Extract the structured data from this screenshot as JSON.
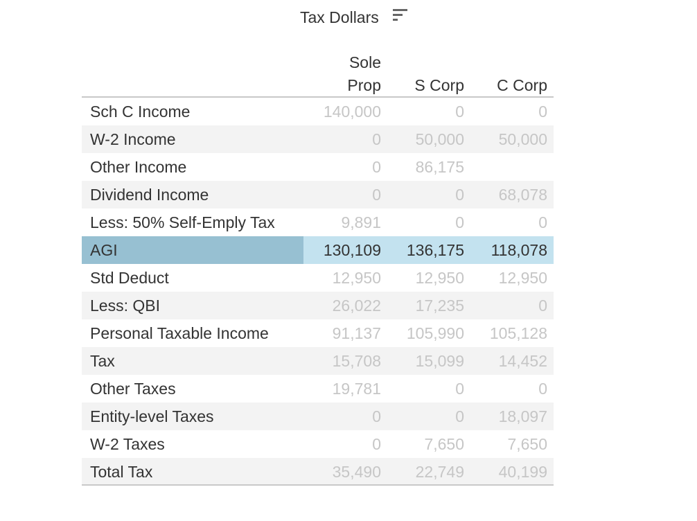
{
  "title": "Tax Dollars",
  "sort_icon": "sort-descending-icon",
  "columns": {
    "c1_line1": "Sole",
    "c1_line2": "Prop",
    "c2": "S Corp",
    "c3": "C Corp"
  },
  "colors": {
    "highlight_label": "#97c0d2",
    "highlight_values": "#c3e2ef",
    "muted_text": "#c6c6c6",
    "text": "#333333"
  },
  "rows": [
    {
      "label": "Sch C Income",
      "values": [
        "140,000",
        "0",
        "0"
      ]
    },
    {
      "label": "W-2 Income",
      "values": [
        "0",
        "50,000",
        "50,000"
      ]
    },
    {
      "label": "Other Income",
      "values": [
        "0",
        "86,175",
        ""
      ]
    },
    {
      "label": "Dividend Income",
      "values": [
        "0",
        "0",
        "68,078"
      ]
    },
    {
      "label": "Less: 50% Self-Emply Tax",
      "values": [
        "9,891",
        "0",
        "0"
      ]
    },
    {
      "label": "AGI",
      "values": [
        "130,109",
        "136,175",
        "118,078"
      ],
      "highlighted": true
    },
    {
      "label": "Std Deduct",
      "values": [
        "12,950",
        "12,950",
        "12,950"
      ]
    },
    {
      "label": "Less: QBI",
      "values": [
        "26,022",
        "17,235",
        "0"
      ]
    },
    {
      "label": "Personal Taxable Income",
      "values": [
        "91,137",
        "105,990",
        "105,128"
      ]
    },
    {
      "label": "Tax",
      "values": [
        "15,708",
        "15,099",
        "14,452"
      ]
    },
    {
      "label": "Other Taxes",
      "values": [
        "19,781",
        "0",
        "0"
      ]
    },
    {
      "label": "Entity-level Taxes",
      "values": [
        "0",
        "0",
        "18,097"
      ]
    },
    {
      "label": "W-2 Taxes",
      "values": [
        "0",
        "7,650",
        "7,650"
      ]
    },
    {
      "label": "Total Tax",
      "values": [
        "35,490",
        "22,749",
        "40,199"
      ]
    }
  ]
}
